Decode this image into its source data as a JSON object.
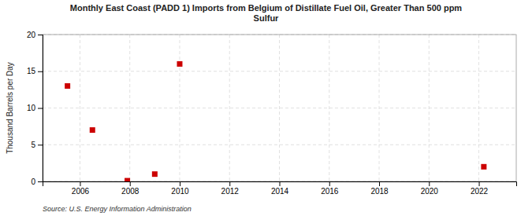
{
  "chart_data": {
    "type": "scatter",
    "title": "Monthly East Coast (PADD 1) Imports from Belgium of Distillate Fuel Oil, Greater Than 500 ppm\nSulfur",
    "ylabel": "Thousand Barrels per Day",
    "source": "Source: U.S. Energy Information Administration",
    "x": [
      2005.5,
      2006.5,
      2007.9,
      2009.0,
      2010.0,
      2022.2
    ],
    "values": [
      13.0,
      7.0,
      0.1,
      1.0,
      16.0,
      2.0
    ],
    "color": "#cc0000",
    "marker": "square",
    "xlim": [
      2004.5,
      2023.5
    ],
    "ylim": [
      0,
      20
    ],
    "xticks": [
      2006,
      2008,
      2010,
      2012,
      2014,
      2016,
      2018,
      2020,
      2022
    ],
    "yticks": [
      0,
      5,
      10,
      15,
      20
    ],
    "grid": true
  }
}
